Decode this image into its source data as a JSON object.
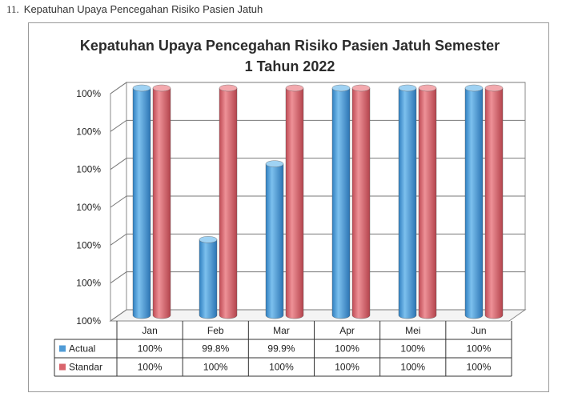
{
  "heading": {
    "number": "11.",
    "text": "Kepatuhan Upaya Pencegahan Risiko Pasien Jatuh"
  },
  "chart_data": {
    "type": "bar",
    "title_line1": "Kepatuhan Upaya Pencegahan Risiko Pasien Jatuh Semester",
    "title_line2": "1 Tahun 2022",
    "categories": [
      "Jan",
      "Feb",
      "Mar",
      "Apr",
      "Mei",
      "Jun"
    ],
    "y_tick_labels": [
      "100%",
      "100%",
      "100%",
      "100%",
      "100%",
      "100%",
      "100%"
    ],
    "ylim": [
      99.7,
      100.0
    ],
    "grid": true,
    "legend": "table-below",
    "series": [
      {
        "name": "Actual",
        "color": "#4f9bd6",
        "values": [
          100,
          99.8,
          99.9,
          100,
          100,
          100
        ],
        "labels": [
          "100%",
          "99.8%",
          "99.9%",
          "100%",
          "100%",
          "100%"
        ]
      },
      {
        "name": "Standar",
        "color": "#d9646c",
        "values": [
          100,
          100,
          100,
          100,
          100,
          100
        ],
        "labels": [
          "100%",
          "100%",
          "100%",
          "100%",
          "100%",
          "100%"
        ]
      }
    ]
  }
}
